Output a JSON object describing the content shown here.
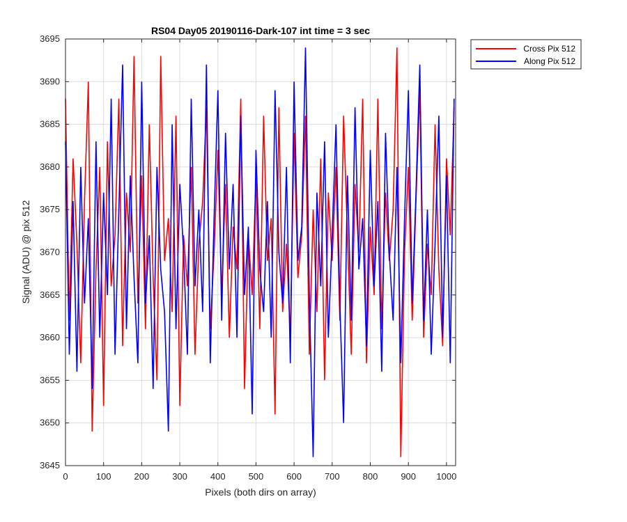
{
  "chart_data": {
    "type": "line",
    "title": "RS04 Day05 20190116-Dark-107 int time = 3 sec",
    "xlabel": "Pixels (both dirs on array)",
    "ylabel": "Signal (ADU) @ pix 512",
    "xlim": [
      0,
      1024
    ],
    "ylim": [
      3645,
      3695
    ],
    "xticks": [
      0,
      100,
      200,
      300,
      400,
      500,
      600,
      700,
      800,
      900,
      1000
    ],
    "yticks": [
      3645,
      3650,
      3655,
      3660,
      3665,
      3670,
      3675,
      3680,
      3685,
      3690,
      3695
    ],
    "grid": true,
    "legend_position": "outside-top-right",
    "series": [
      {
        "name": "Cross Pix 512",
        "color": "#ff0000",
        "x": [
          0,
          10,
          20,
          30,
          40,
          50,
          60,
          70,
          80,
          90,
          100,
          110,
          120,
          130,
          140,
          150,
          160,
          170,
          180,
          190,
          200,
          210,
          220,
          230,
          240,
          250,
          260,
          270,
          280,
          290,
          300,
          310,
          320,
          330,
          340,
          350,
          360,
          370,
          380,
          390,
          400,
          410,
          420,
          430,
          440,
          450,
          460,
          470,
          480,
          490,
          500,
          510,
          520,
          530,
          540,
          550,
          560,
          570,
          580,
          590,
          600,
          610,
          620,
          630,
          640,
          650,
          660,
          670,
          680,
          690,
          700,
          710,
          720,
          730,
          740,
          750,
          760,
          770,
          780,
          790,
          800,
          810,
          820,
          830,
          840,
          850,
          860,
          870,
          880,
          890,
          900,
          910,
          920,
          930,
          940,
          950,
          960,
          970,
          980,
          990,
          1000,
          1010,
          1020
        ],
        "values": [
          3688,
          3662,
          3681,
          3671,
          3657,
          3676,
          3690,
          3649,
          3668,
          3680,
          3652,
          3683,
          3666,
          3672,
          3688,
          3659,
          3677,
          3670,
          3693,
          3664,
          3679,
          3661,
          3685,
          3667,
          3655,
          3693,
          3669,
          3674,
          3663,
          3686,
          3652,
          3672,
          3666,
          3680,
          3658,
          3671,
          3676,
          3687,
          3661,
          3670,
          3682,
          3665,
          3678,
          3660,
          3673,
          3668,
          3688,
          3654,
          3672,
          3665,
          3679,
          3661,
          3686,
          3669,
          3674,
          3651,
          3687,
          3663,
          3671,
          3660,
          3684,
          3667,
          3672,
          3686,
          3658,
          3675,
          3663,
          3681,
          3655,
          3677,
          3669,
          3680,
          3662,
          3686,
          3672,
          3658,
          3678,
          3670,
          3688,
          3657,
          3673,
          3665,
          3688,
          3661,
          3677,
          3669,
          3675,
          3694,
          3646,
          3670,
          3680,
          3662,
          3676,
          3689,
          3660,
          3671,
          3665,
          3685,
          3668,
          3659,
          3681,
          3672,
          3687
        ]
      },
      {
        "name": "Along Pix 512",
        "color": "#0000ff",
        "x": [
          0,
          10,
          20,
          30,
          40,
          50,
          60,
          70,
          80,
          90,
          100,
          110,
          120,
          130,
          140,
          150,
          160,
          170,
          180,
          190,
          200,
          210,
          220,
          230,
          240,
          250,
          260,
          270,
          280,
          290,
          300,
          310,
          320,
          330,
          340,
          350,
          360,
          370,
          380,
          390,
          400,
          410,
          420,
          430,
          440,
          450,
          460,
          470,
          480,
          490,
          500,
          510,
          520,
          530,
          540,
          550,
          560,
          570,
          580,
          590,
          600,
          610,
          620,
          630,
          640,
          650,
          660,
          670,
          680,
          690,
          700,
          710,
          720,
          730,
          740,
          750,
          760,
          770,
          780,
          790,
          800,
          810,
          820,
          830,
          840,
          850,
          860,
          870,
          880,
          890,
          900,
          910,
          920,
          930,
          940,
          950,
          960,
          970,
          980,
          990,
          1000,
          1010,
          1020
        ],
        "values": [
          3683,
          3658,
          3676,
          3656,
          3680,
          3664,
          3674,
          3654,
          3683,
          3660,
          3677,
          3665,
          3688,
          3658,
          3675,
          3692,
          3661,
          3679,
          3667,
          3657,
          3690,
          3664,
          3672,
          3654,
          3680,
          3668,
          3663,
          3649,
          3685,
          3661,
          3678,
          3670,
          3658,
          3688,
          3666,
          3675,
          3663,
          3692,
          3657,
          3674,
          3689,
          3662,
          3684,
          3668,
          3678,
          3660,
          3686,
          3665,
          3673,
          3651,
          3682,
          3668,
          3663,
          3676,
          3660,
          3689,
          3670,
          3664,
          3680,
          3657,
          3690,
          3669,
          3673,
          3694,
          3665,
          3646,
          3677,
          3666,
          3683,
          3660,
          3672,
          3685,
          3664,
          3650,
          3679,
          3662,
          3687,
          3668,
          3674,
          3659,
          3682,
          3666,
          3676,
          3656,
          3684,
          3670,
          3662,
          3680,
          3657,
          3674,
          3689,
          3664,
          3677,
          3692,
          3662,
          3675,
          3658,
          3671,
          3686,
          3660,
          3679,
          3657,
          3688
        ]
      }
    ]
  }
}
